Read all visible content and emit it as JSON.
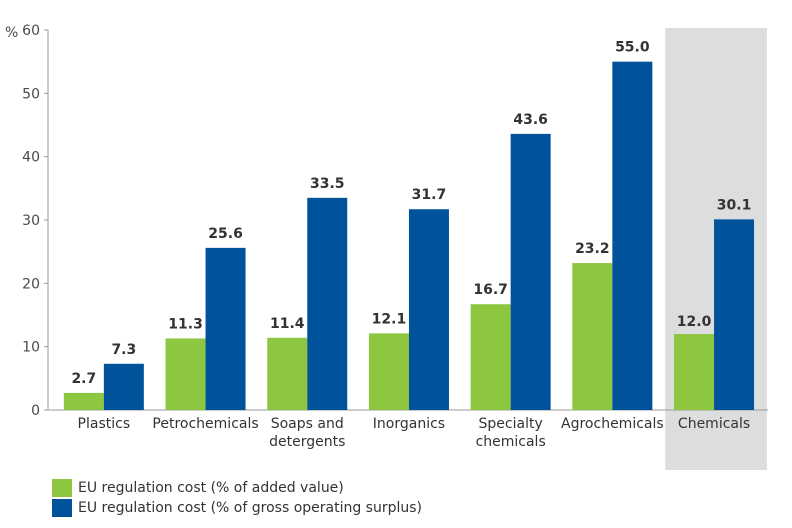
{
  "chart_data": {
    "type": "bar",
    "y_unit": "%",
    "ylim": [
      0,
      60
    ],
    "yticks": [
      "0",
      "10",
      "20",
      "30",
      "40",
      "50",
      "60"
    ],
    "categories": [
      [
        "Plastics"
      ],
      [
        "Petrochemicals"
      ],
      [
        "Soaps and",
        "detergents"
      ],
      [
        "Inorganics"
      ],
      [
        "Specialty",
        "chemicals"
      ],
      [
        "Agrochemicals"
      ],
      [
        "Chemicals"
      ]
    ],
    "highlighted_category_index": 6,
    "series": [
      {
        "name": "EU regulation cost (% of added value)",
        "color": "#8DC63F",
        "values": [
          2.7,
          11.3,
          11.4,
          12.1,
          16.7,
          23.2,
          12.0
        ],
        "labels": [
          "2.7",
          "11.3",
          "11.4",
          "12.1",
          "16.7",
          "23.2",
          "12.0"
        ]
      },
      {
        "name": "EU regulation cost (% of gross operating surplus)",
        "color": "#00539B",
        "values": [
          7.3,
          25.6,
          33.5,
          31.7,
          43.6,
          55.0,
          30.1
        ],
        "labels": [
          "7.3",
          "25.6",
          "33.5",
          "31.7",
          "43.6",
          "55.0",
          "30.1"
        ]
      }
    ],
    "highlight_color": "#DCDDDF",
    "legend_position": "bottom-left",
    "grid": false
  }
}
